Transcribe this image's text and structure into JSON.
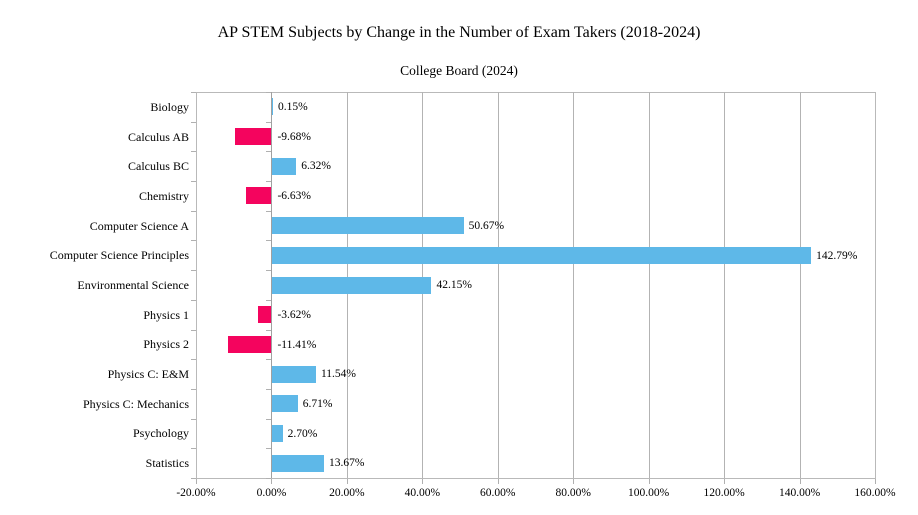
{
  "chart_data": {
    "type": "bar",
    "orientation": "horizontal",
    "title": "AP STEM Subjects by Change in the Number of Exam Takers (2018-2024)",
    "subtitle": "College Board (2024)",
    "categories": [
      "Biology",
      "Calculus AB",
      "Calculus BC",
      "Chemistry",
      "Computer Science A",
      "Computer Science Principles",
      "Environmental Science",
      "Physics 1",
      "Physics 2",
      "Physics C: E&M",
      "Physics C: Mechanics",
      "Psychology",
      "Statistics"
    ],
    "values": [
      0.15,
      -9.68,
      6.32,
      -6.63,
      50.67,
      142.79,
      42.15,
      -3.62,
      -11.41,
      11.54,
      6.71,
      2.7,
      13.67
    ],
    "data_labels": [
      "0.15%",
      "-9.68%",
      "6.32%",
      "-6.63%",
      "50.67%",
      "142.79%",
      "42.15%",
      "-3.62%",
      "-11.41%",
      "11.54%",
      "6.71%",
      "2.70%",
      "13.67%"
    ],
    "xlabel": "",
    "ylabel": "",
    "xlim": [
      -20,
      160
    ],
    "xtick_values": [
      -20,
      0,
      20,
      40,
      60,
      80,
      100,
      120,
      140,
      160
    ],
    "xtick_labels": [
      "-20.00%",
      "0.00%",
      "20.00%",
      "40.00%",
      "60.00%",
      "80.00%",
      "100.00%",
      "120.00%",
      "140.00%",
      "160.00%"
    ],
    "grid": true,
    "legend": false,
    "colors": {
      "positive_bar": "#5EB8E8",
      "negative_bar": "#F4045E",
      "gridline": "#B3B3B3",
      "plot_border": "#B9B9B9",
      "zero_axis": "#A0A0A0",
      "text": "#000000",
      "background": "#FFFFFF"
    }
  }
}
